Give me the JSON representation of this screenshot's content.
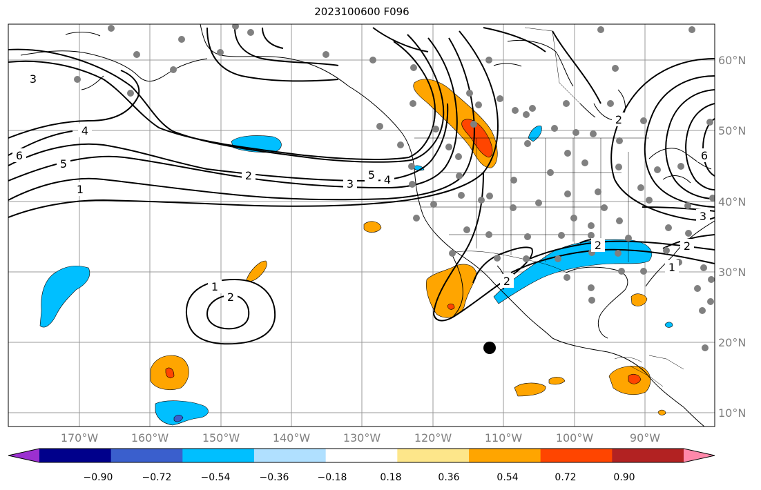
{
  "title": "2023100600 F096",
  "longitude_labels": [
    "170°W",
    "160°W",
    "150°W",
    "140°W",
    "130°W",
    "120°W",
    "110°W",
    "100°W",
    "90°W"
  ],
  "latitude_labels": [
    "60°N",
    "50°N",
    "40°N",
    "30°N",
    "20°N",
    "10°N"
  ],
  "colorbar": {
    "tick_labels": [
      "−0.90",
      "−0.72",
      "−0.54",
      "−0.36",
      "−0.18",
      "0.18",
      "0.36",
      "0.54",
      "0.72",
      "0.90"
    ],
    "colors": [
      "#9b30d0",
      "#00008b",
      "#3a5fcd",
      "#00bfff",
      "#b0e0ff",
      "#ffffff",
      "#fde68a",
      "#ffa500",
      "#ff4500",
      "#b22222",
      "#ff88aa"
    ]
  },
  "contour_labels": [
    "3",
    "4",
    "6",
    "5",
    "1",
    "2",
    "3",
    "5",
    "4",
    "1",
    "2",
    "2",
    "6",
    "3",
    "2",
    "1",
    "2",
    "2"
  ],
  "colors": {
    "contour": "#000000",
    "station": "#808080",
    "grid": "#999999",
    "coast": "#000000"
  }
}
